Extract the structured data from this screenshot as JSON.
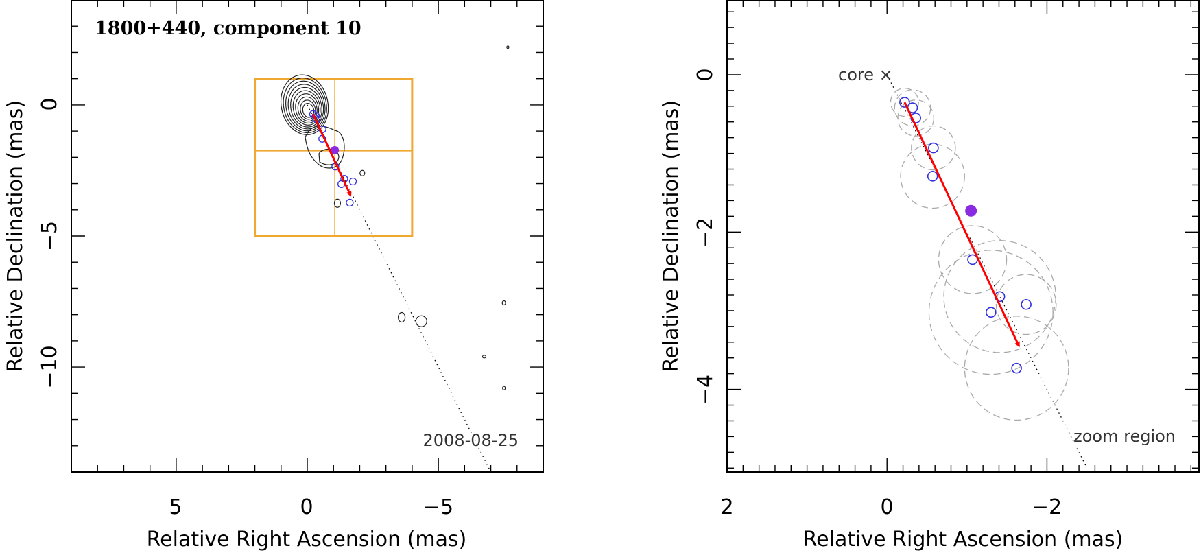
{
  "chart_data": [
    {
      "type": "scatter",
      "title": "1800+440, component 10",
      "annotation": "2008-08-25",
      "xlabel": "Relative Right Ascension (mas)",
      "ylabel": "Relative Declination (mas)",
      "xlim": [
        9,
        -9
      ],
      "ylim": [
        -14,
        4
      ],
      "x_ticks": [
        5,
        0,
        -5
      ],
      "x_tick_labels": [
        "5",
        "0",
        "−5"
      ],
      "y_ticks": [
        0,
        -5,
        -10
      ],
      "y_tick_labels": [
        "0",
        "−5",
        "−10"
      ],
      "grid": false,
      "jet_axis": {
        "from": [
          0,
          0
        ],
        "to": [
          -7.0,
          -14.0
        ],
        "style": "dotted"
      },
      "zoom_box": {
        "x": [
          2.0,
          -4.0
        ],
        "y": [
          -5.0,
          1.0
        ],
        "color": "#f0a830",
        "divider_x": -1.05,
        "divider_y": -1.75
      },
      "contours_center": [
        0.05,
        -0.1
      ],
      "contour_levels": 10,
      "component_positions": [
        {
          "x": -0.22,
          "y": -0.35
        },
        {
          "x": -0.32,
          "y": -0.42
        },
        {
          "x": -0.36,
          "y": -0.55
        },
        {
          "x": -0.58,
          "y": -0.93
        },
        {
          "x": -0.57,
          "y": -1.29
        },
        {
          "x": -1.07,
          "y": -2.35
        },
        {
          "x": -1.41,
          "y": -2.82
        },
        {
          "x": -1.3,
          "y": -3.02
        },
        {
          "x": -1.74,
          "y": -2.92
        },
        {
          "x": -1.62,
          "y": -3.73
        }
      ],
      "highlight_position": {
        "x": -1.05,
        "y": -1.73,
        "color": "#8a2be2"
      },
      "velocity_vector": {
        "from": [
          -0.22,
          -0.35
        ],
        "to": [
          -1.65,
          -3.45
        ],
        "color": "#ff0000"
      }
    },
    {
      "type": "scatter",
      "annotations": [
        "core ×",
        "zoom region"
      ],
      "xlabel": "Relative Right Ascension (mas)",
      "ylabel": "Relative Declination (mas)",
      "xlim": [
        2,
        -3.9
      ],
      "ylim": [
        -5.05,
        0.95
      ],
      "x_ticks": [
        2,
        0,
        -2
      ],
      "x_tick_labels": [
        "2",
        "0",
        "−2"
      ],
      "y_ticks": [
        0,
        -2,
        -4
      ],
      "y_tick_labels": [
        "0",
        "−2",
        "−4"
      ],
      "grid": false,
      "core": {
        "x": 0,
        "y": 0
      },
      "jet_axis": {
        "from": [
          0,
          0
        ],
        "to": [
          -2.5,
          -5.0
        ],
        "style": "dotted"
      },
      "component_positions": [
        {
          "x": -0.22,
          "y": -0.35,
          "fwhm": 0.35
        },
        {
          "x": -0.32,
          "y": -0.42,
          "fwhm": 0.45
        },
        {
          "x": -0.36,
          "y": -0.55,
          "fwhm": 0.45
        },
        {
          "x": -0.58,
          "y": -0.93,
          "fwhm": 0.55
        },
        {
          "x": -0.57,
          "y": -1.29,
          "fwhm": 0.8
        },
        {
          "x": -1.07,
          "y": -2.35,
          "fwhm": 0.85
        },
        {
          "x": -1.41,
          "y": -2.82,
          "fwhm": 1.4
        },
        {
          "x": -1.3,
          "y": -3.02,
          "fwhm": 1.55
        },
        {
          "x": -1.74,
          "y": -2.92,
          "fwhm": 0.75
        },
        {
          "x": -1.62,
          "y": -3.73,
          "fwhm": 1.3
        }
      ],
      "highlight_position": {
        "x": -1.05,
        "y": -1.73,
        "color": "#8a2be2"
      },
      "velocity_vector": {
        "from": [
          -0.22,
          -0.35
        ],
        "to": [
          -1.65,
          -3.45
        ],
        "color": "#ff0000"
      }
    }
  ]
}
